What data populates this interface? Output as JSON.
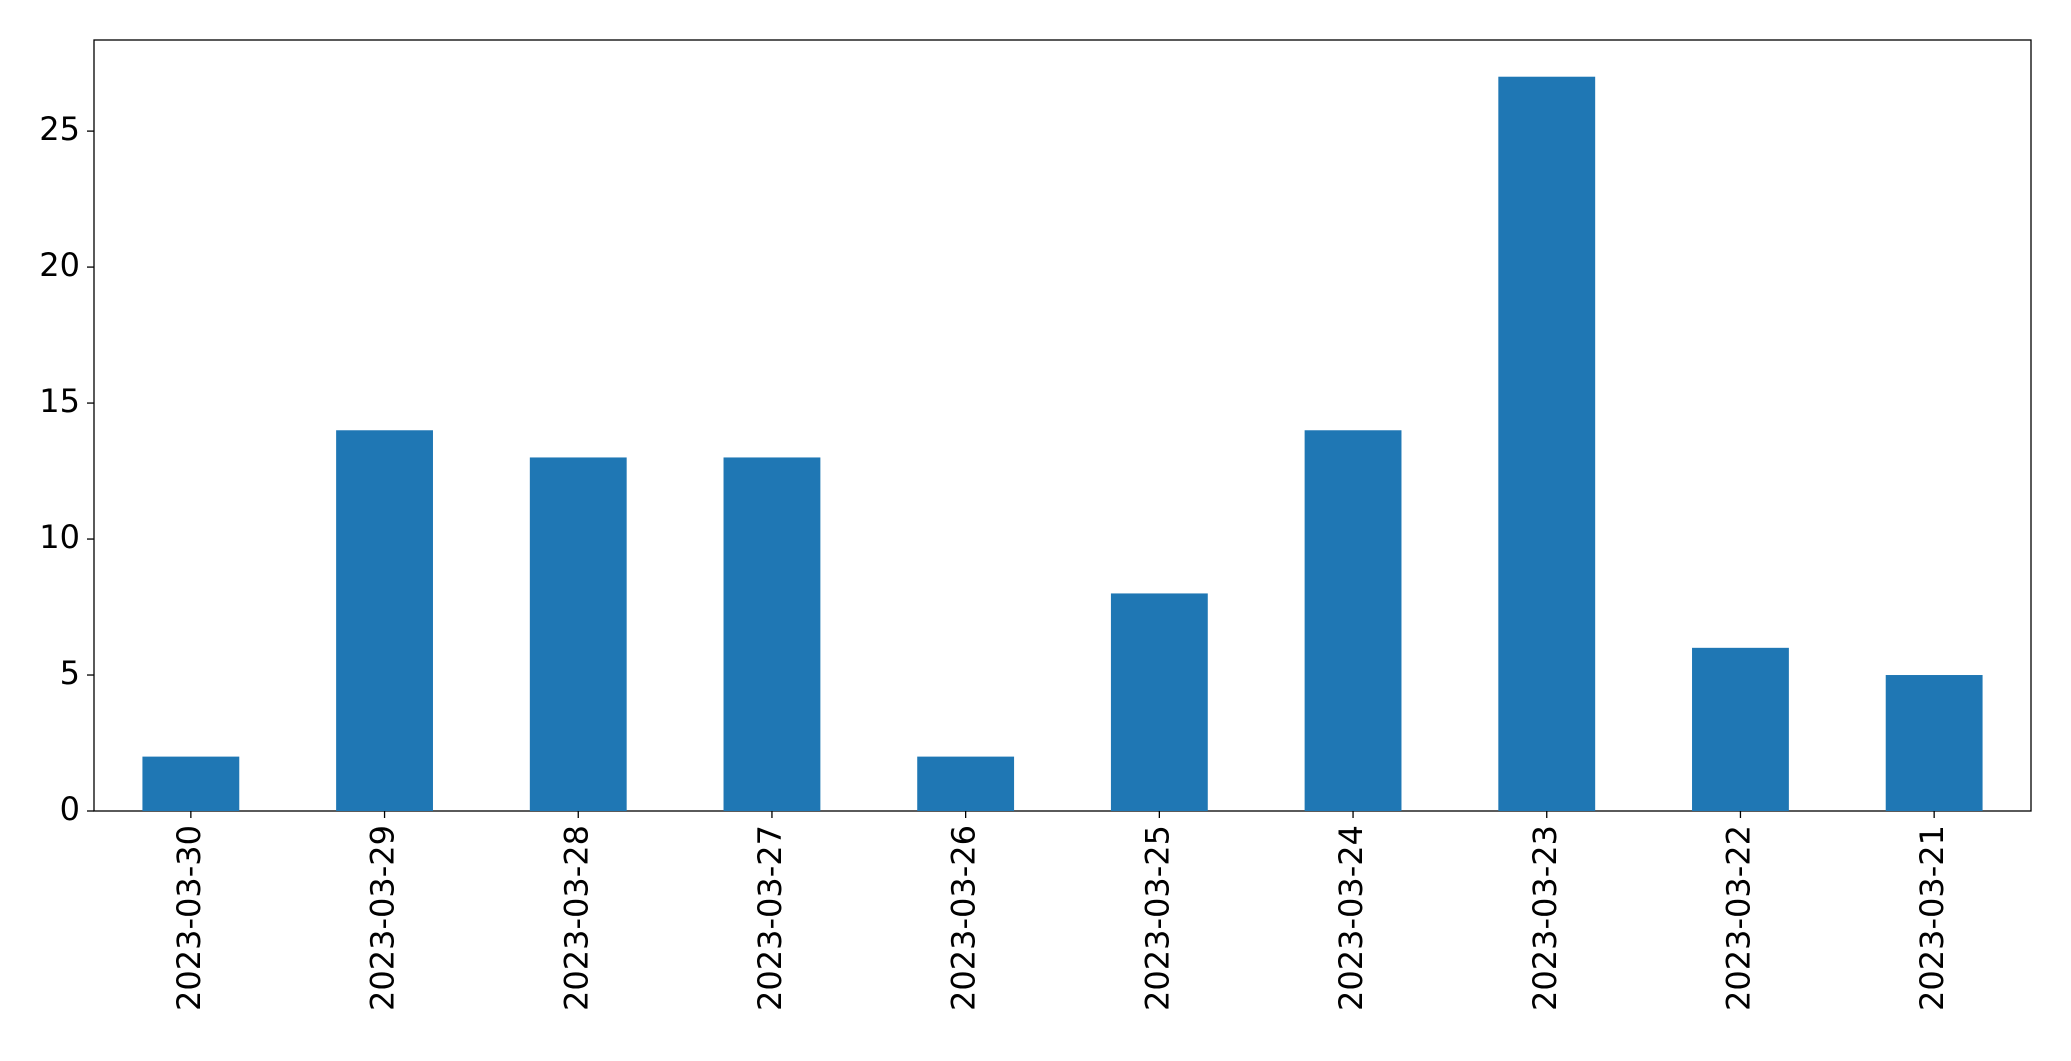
{
  "chart_data": {
    "type": "bar",
    "categories": [
      "2023-03-30",
      "2023-03-29",
      "2023-03-28",
      "2023-03-27",
      "2023-03-26",
      "2023-03-25",
      "2023-03-24",
      "2023-03-23",
      "2023-03-22",
      "2023-03-21"
    ],
    "values": [
      2,
      14,
      13,
      13,
      2,
      8,
      14,
      27,
      6,
      5
    ],
    "color": "#1f77b4",
    "ylim": [
      0,
      28.35
    ],
    "yticks": [
      0,
      5,
      10,
      15,
      20,
      25
    ],
    "grid": false
  }
}
